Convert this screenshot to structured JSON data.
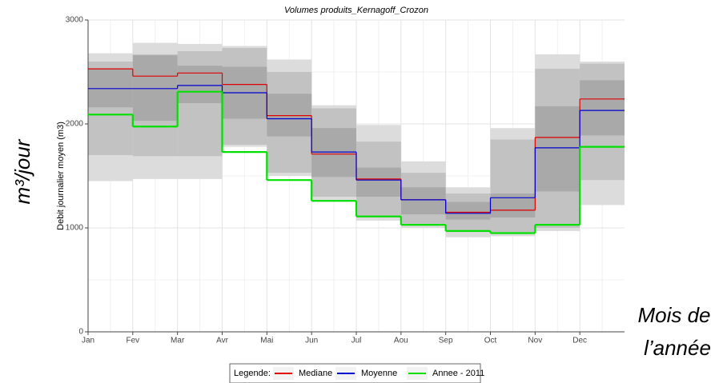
{
  "chart_data": {
    "type": "step",
    "title": "Volumes produits_Kernagoff_Crozon",
    "y_label": "Debit journalier moyen (m3)",
    "side_label": "m³/jour",
    "annotation": [
      "Mois de",
      "l’année"
    ],
    "legend_title": "Legende:",
    "categories": [
      "Jan",
      "Fev",
      "Mar",
      "Avr",
      "Mai",
      "Jun",
      "Jul",
      "Aou",
      "Sep",
      "Oct",
      "Nov",
      "Dec"
    ],
    "ylim": [
      0,
      3000
    ],
    "yticks": [
      0,
      1000,
      2000,
      3000
    ],
    "grid": true,
    "bands": [
      {
        "color": "#dcdcdc",
        "lower": [
          1450,
          1470,
          1470,
          1780,
          1500,
          1250,
          1070,
          1000,
          910,
          920,
          970,
          1220
        ],
        "upper": [
          2680,
          2780,
          2770,
          2750,
          2620,
          2180,
          1990,
          1640,
          1390,
          1960,
          2670,
          2600
        ]
      },
      {
        "color": "#c2c2c2",
        "lower": [
          1700,
          1690,
          1690,
          1800,
          1530,
          1300,
          1100,
          1040,
          960,
          960,
          1000,
          1460
        ],
        "upper": [
          2600,
          2670,
          2700,
          2730,
          2500,
          2150,
          1830,
          1530,
          1330,
          1850,
          2530,
          2580
        ]
      },
      {
        "color": "#a9a9a9",
        "lower": [
          2160,
          2030,
          2200,
          2050,
          1880,
          1490,
          1300,
          1130,
          1080,
          1100,
          1350,
          1890
        ],
        "upper": [
          2530,
          2660,
          2560,
          2550,
          2290,
          1960,
          1580,
          1390,
          1250,
          1330,
          2170,
          2420
        ]
      }
    ],
    "series": [
      {
        "name": "Mediane",
        "color": "#e00000",
        "values": [
          2530,
          2460,
          2490,
          2380,
          2080,
          1710,
          1470,
          1270,
          1150,
          1170,
          1870,
          2240
        ]
      },
      {
        "name": "Moyenne",
        "color": "#0000d0",
        "values": [
          2340,
          2340,
          2370,
          2300,
          2050,
          1730,
          1460,
          1270,
          1140,
          1290,
          1770,
          2130
        ]
      },
      {
        "name": "Annee - 2011",
        "color": "#00e000",
        "values": [
          2090,
          1975,
          2310,
          1730,
          1460,
          1260,
          1110,
          1030,
          970,
          950,
          1030,
          1780
        ]
      }
    ]
  }
}
